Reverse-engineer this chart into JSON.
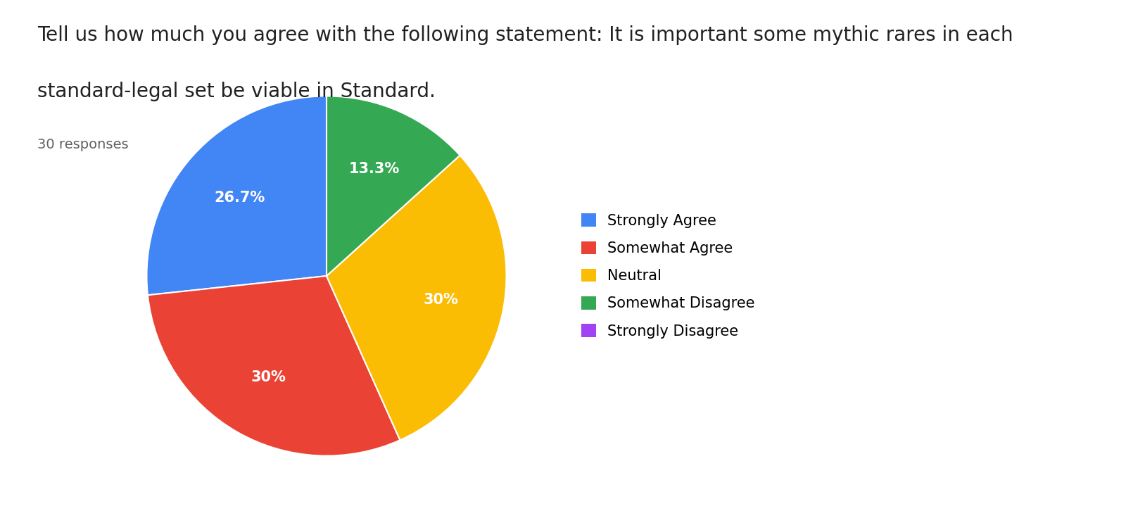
{
  "title_line1": "Tell us how much you agree with the following statement: It is important some mythic rares in each",
  "title_line2": "standard-legal set be viable in Standard.",
  "responses_label": "30 responses",
  "labels": [
    "Strongly Agree",
    "Somewhat Agree",
    "Neutral",
    "Somewhat Disagree",
    "Strongly Disagree"
  ],
  "values": [
    26.7,
    30.0,
    30.0,
    13.3,
    0.0
  ],
  "colors": [
    "#4285F4",
    "#EA4335",
    "#FBBC04",
    "#34A853",
    "#A142F4"
  ],
  "autopct_labels": [
    "26.7%",
    "30%",
    "30%",
    "13.3%"
  ],
  "start_angle": 90,
  "title_fontsize": 20,
  "responses_fontsize": 14,
  "legend_fontsize": 15,
  "pct_fontsize": 15,
  "background_color": "#ffffff"
}
